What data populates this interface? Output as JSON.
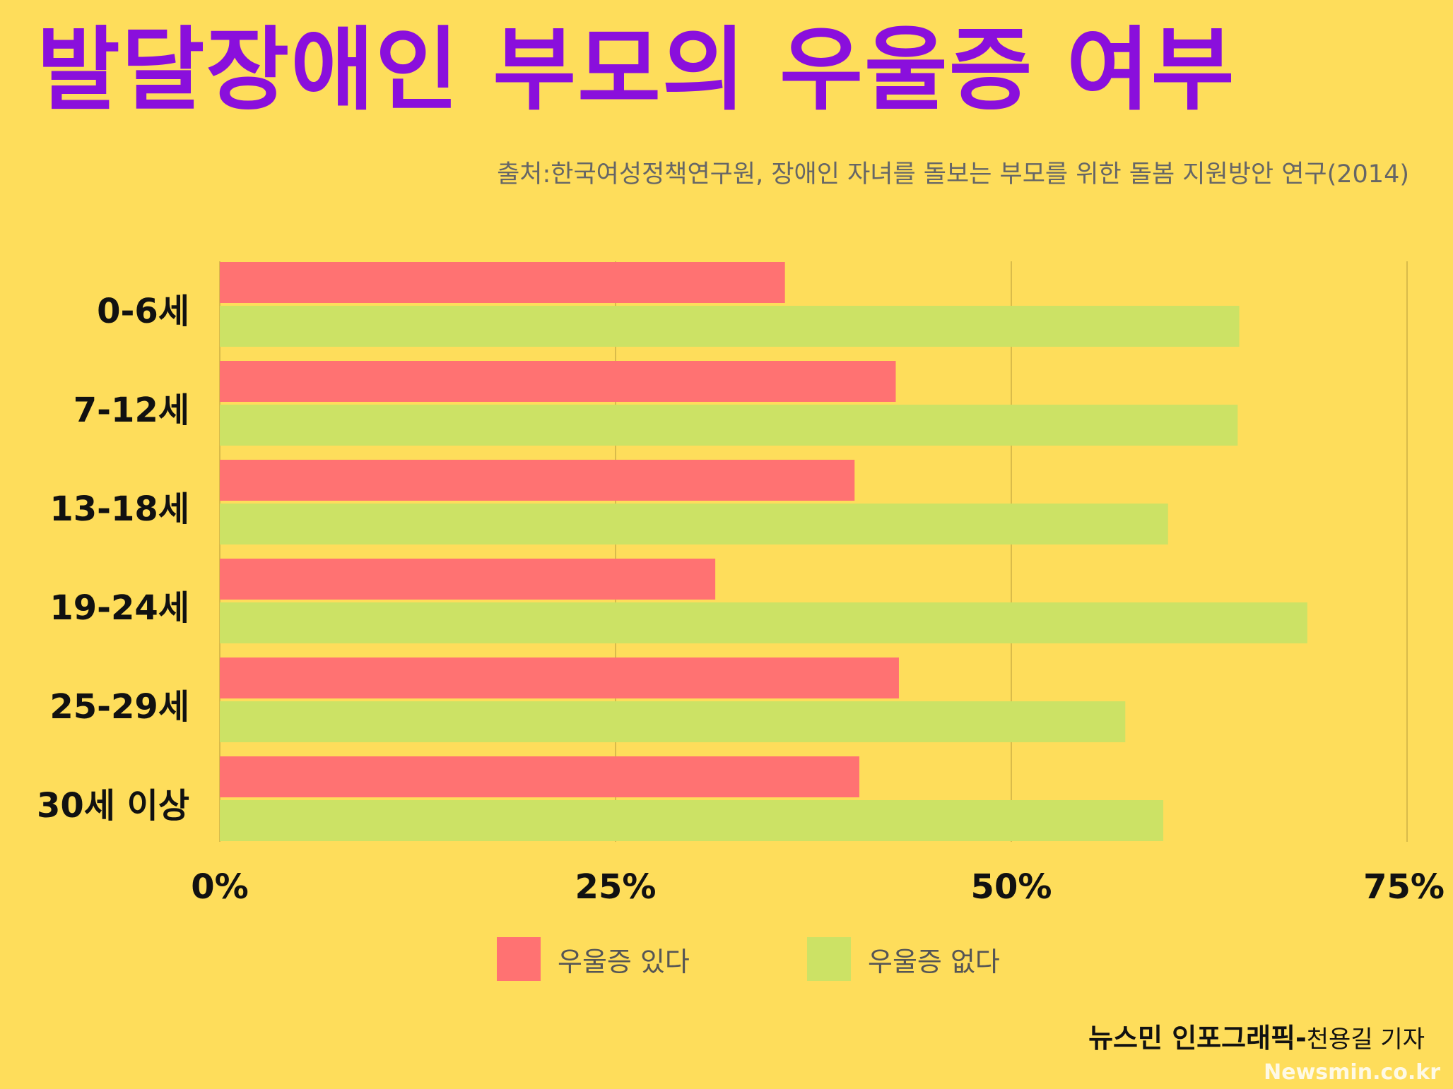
{
  "title": "발달장애인 부모의 우울증 여부",
  "source": "출처:한국여성정책연구원, 장애인 자녀를 돌보는 부모를 위한 돌봄 지원방안 연구(2014)",
  "credit": {
    "org": "뉴스민 인포그래픽-",
    "reporter": "천용길 기자"
  },
  "watermark": "Newsmin.co.kr",
  "colors": {
    "background": "#FEDD5B",
    "title": "#8A0FDC",
    "series_yes": "#FF7272",
    "series_no": "#CCE265",
    "grid": "#D9BB4A"
  },
  "chart_data": {
    "type": "bar",
    "orientation": "horizontal",
    "categories": [
      "0-6세",
      "7-12세",
      "13-18세",
      "19-24세",
      "25-29세",
      "30세 이상"
    ],
    "series": [
      {
        "name": "우울증 있다",
        "values": [
          35.7,
          42.7,
          40.1,
          31.3,
          42.9,
          40.4
        ]
      },
      {
        "name": "우울증 없다",
        "values": [
          64.4,
          64.3,
          59.9,
          68.7,
          57.2,
          59.6
        ]
      }
    ],
    "xlim": [
      0,
      75
    ],
    "ticks": [
      0,
      25,
      50,
      75
    ],
    "tick_labels": [
      "0%",
      "25%",
      "50%",
      "75%"
    ],
    "grid": true,
    "legend": "bottom"
  }
}
